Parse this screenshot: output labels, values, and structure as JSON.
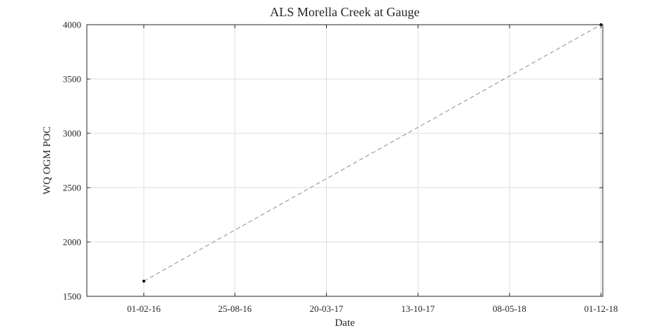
{
  "chart_data": {
    "type": "line",
    "title": "ALS Morella Creek at Gauge",
    "xlabel": "Date",
    "ylabel": "WQ OGM POC",
    "x_axis_type": "date",
    "x_ticks": [
      {
        "date": "2016-02-01",
        "label": "01-02-16"
      },
      {
        "date": "2016-08-25",
        "label": "25-08-16"
      },
      {
        "date": "2017-03-20",
        "label": "20-03-17"
      },
      {
        "date": "2017-10-13",
        "label": "13-10-17"
      },
      {
        "date": "2018-05-08",
        "label": "08-05-18"
      },
      {
        "date": "2018-12-01",
        "label": "01-12-18"
      }
    ],
    "xlim": [
      "2015-09-25",
      "2018-12-05"
    ],
    "ylim": [
      1500,
      4000
    ],
    "y_ticks": [
      1500,
      2000,
      2500,
      3000,
      3500,
      4000
    ],
    "grid": true,
    "series": [
      {
        "points": [
          {
            "x": "2016-02-01",
            "y": 1640
          },
          {
            "x": "2018-12-01",
            "y": 4000
          }
        ],
        "marker_color": "#000000",
        "line_color": "#8c8c8c",
        "line_style": "dashed"
      }
    ]
  }
}
